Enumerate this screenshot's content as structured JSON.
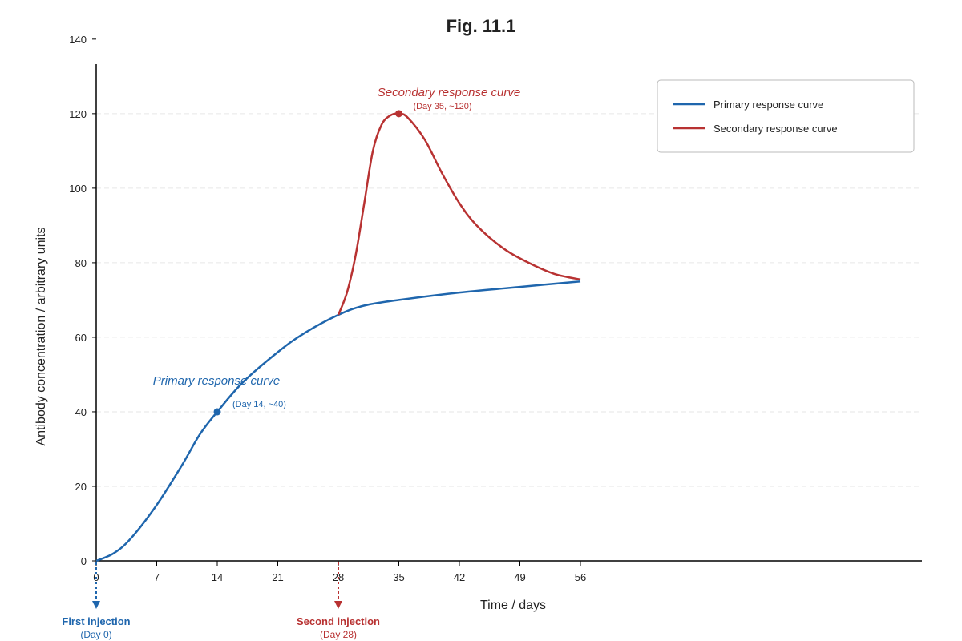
{
  "chart_data": {
    "type": "line",
    "title": "Fig. 11.1",
    "xlabel": "Time / days",
    "ylabel": "Antibody concentration / arbitrary units",
    "xlim": [
      0,
      56
    ],
    "ylim": [
      0,
      140
    ],
    "x_ticks": [
      0,
      7,
      14,
      21,
      28,
      35,
      42,
      49,
      56
    ],
    "y_ticks": [
      0,
      20,
      40,
      60,
      80,
      100,
      120,
      140
    ],
    "grid": "horizontal dashed",
    "legend_position": "top-right",
    "series": [
      {
        "name": "Primary response curve",
        "color": "#1f66ad",
        "points": [
          [
            0,
            0
          ],
          [
            2,
            2
          ],
          [
            4,
            6
          ],
          [
            7,
            15
          ],
          [
            10,
            26
          ],
          [
            12,
            34
          ],
          [
            14,
            40
          ],
          [
            17,
            48
          ],
          [
            21,
            56
          ],
          [
            24,
            61
          ],
          [
            28,
            66
          ],
          [
            31,
            68.5
          ],
          [
            35,
            70
          ],
          [
            42,
            72
          ],
          [
            49,
            73.5
          ],
          [
            56,
            75
          ]
        ]
      },
      {
        "name": "Secondary response curve",
        "color": "#b83232",
        "points": [
          [
            28,
            66
          ],
          [
            29,
            72
          ],
          [
            30,
            82
          ],
          [
            31,
            96
          ],
          [
            32,
            110
          ],
          [
            33,
            117
          ],
          [
            34,
            119.5
          ],
          [
            35,
            120
          ],
          [
            36,
            119
          ],
          [
            38,
            113
          ],
          [
            40,
            104
          ],
          [
            42,
            96
          ],
          [
            44,
            90
          ],
          [
            47,
            84
          ],
          [
            50,
            80
          ],
          [
            53,
            77
          ],
          [
            56,
            75.5
          ]
        ]
      }
    ],
    "annotations": {
      "primary_label": "Primary response curve",
      "primary_point_label": "(Day 14, ~40)",
      "primary_point": [
        14,
        40
      ],
      "secondary_label": "Secondary response curve",
      "secondary_point_label": "(Day 35, ~120)",
      "secondary_point": [
        35,
        120
      ]
    },
    "injections": [
      {
        "day": 0,
        "label": "First injection",
        "sub": "(Day 0)",
        "color": "#1f66ad"
      },
      {
        "day": 28,
        "label": "Second injection",
        "sub": "(Day 28)",
        "color": "#b83232"
      }
    ]
  }
}
